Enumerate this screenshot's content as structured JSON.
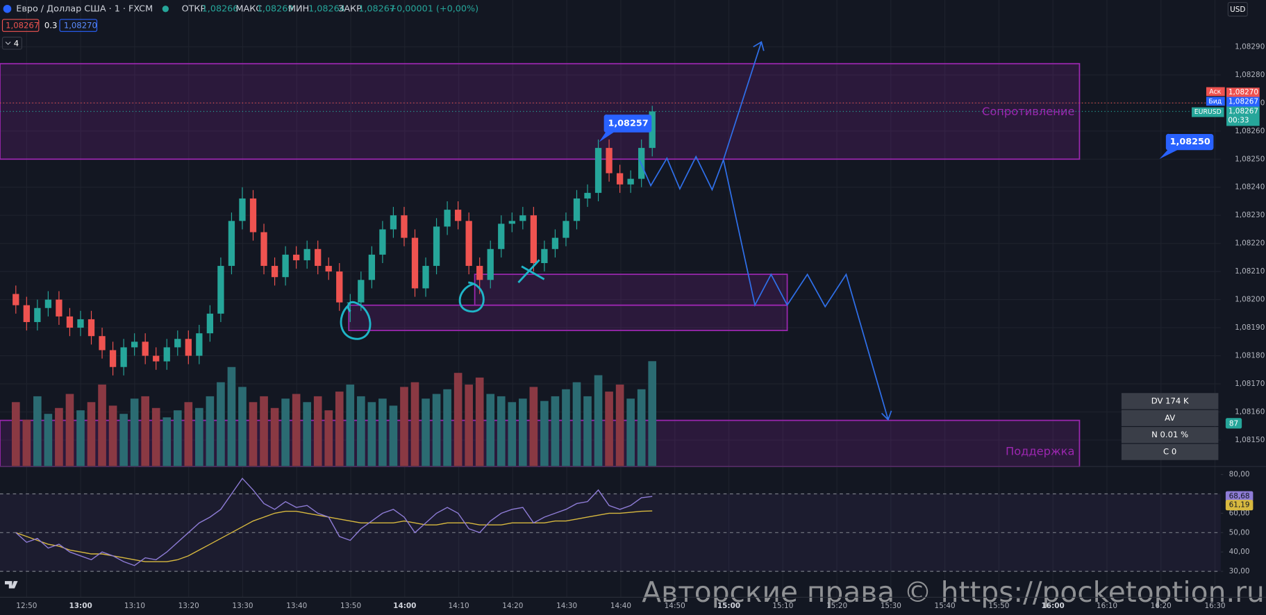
{
  "header": {
    "title": "Евро / Доллар США · 1 · FXCM",
    "open_label": "ОТКР",
    "open": "1,08266",
    "high_label": "МАКС",
    "high": "1,08269",
    "low_label": "МИН",
    "low": "1,08264",
    "close_label": "ЗАКР",
    "close": "1,08267",
    "change": "+0,00001 (+0,00%)",
    "sell": "1,08267",
    "spread": "0.3",
    "buy": "1,08270",
    "indicators": "4",
    "currency": "USD"
  },
  "badges": {
    "ask_label": "Аск",
    "bid_label": "Бид",
    "symbol": "EURUSD",
    "countdown": "00:33"
  },
  "callouts": [
    "1,08257",
    "1,08250"
  ],
  "info_box": [
    "DV 174 K",
    "AV",
    "N 0.01 %",
    "C  0",
    "87"
  ],
  "watermark": "Авторские права © https://pocketoption.ru",
  "chart_data": {
    "type": "candlestick",
    "ylim": [
      1.0814,
      1.083
    ],
    "yticks": [
      {
        "value": 1.0815,
        "label": "1,08150"
      },
      {
        "value": 1.0816,
        "label": "1,08160"
      },
      {
        "value": 1.0817,
        "label": "1,08170"
      },
      {
        "value": 1.0818,
        "label": "1,08180"
      },
      {
        "value": 1.0819,
        "label": "1,08190"
      },
      {
        "value": 1.082,
        "label": "1,08200"
      },
      {
        "value": 1.0821,
        "label": "1,08210"
      },
      {
        "value": 1.0822,
        "label": "1,08220"
      },
      {
        "value": 1.0823,
        "label": "1,08230"
      },
      {
        "value": 1.0824,
        "label": "1,08240"
      },
      {
        "value": 1.0825,
        "label": "1,08250"
      },
      {
        "value": 1.0826,
        "label": "1,08260"
      },
      {
        "value": 1.0827,
        "label": "1,08270"
      },
      {
        "value": 1.0828,
        "label": "1,08280"
      },
      {
        "value": 1.0829,
        "label": "1,08290"
      }
    ],
    "time_labels": [
      "12:50",
      "13:00",
      "13:10",
      "13:20",
      "13:30",
      "13:40",
      "13:50",
      "14:00",
      "14:10",
      "14:20",
      "14:30",
      "14:40",
      "14:50",
      "15:00",
      "15:10",
      "15:20",
      "15:30",
      "15:40",
      "15:50",
      "16:00",
      "16:10",
      "16:20",
      "16:30"
    ],
    "grid": true,
    "up_color": "#26a69a",
    "down_color": "#ef5350",
    "candles": {
      "open": [
        1.08202,
        1.08198,
        1.08192,
        1.08197,
        1.082,
        1.08194,
        1.0819,
        1.08193,
        1.08187,
        1.08182,
        1.08176,
        1.08183,
        1.08185,
        1.0818,
        1.08178,
        1.08183,
        1.08186,
        1.0818,
        1.08188,
        1.08195,
        1.08212,
        1.08228,
        1.08236,
        1.08224,
        1.08212,
        1.08208,
        1.08216,
        1.08214,
        1.08218,
        1.08212,
        1.0821,
        1.08199,
        1.08199,
        1.08207,
        1.08216,
        1.08225,
        1.0823,
        1.08222,
        1.08204,
        1.08212,
        1.08226,
        1.08232,
        1.08228,
        1.08212,
        1.08207,
        1.08218,
        1.08227,
        1.08228,
        1.0823,
        1.08213,
        1.08218,
        1.08222,
        1.08228,
        1.08236,
        1.08238,
        1.08254,
        1.08245,
        1.08241,
        1.08243,
        1.08254
      ],
      "high": [
        1.08205,
        1.08201,
        1.082,
        1.08203,
        1.08203,
        1.08197,
        1.08196,
        1.08196,
        1.0819,
        1.08185,
        1.08186,
        1.08188,
        1.08188,
        1.08183,
        1.08186,
        1.08189,
        1.08189,
        1.08191,
        1.08198,
        1.08215,
        1.08231,
        1.0824,
        1.08239,
        1.08227,
        1.08215,
        1.08219,
        1.08219,
        1.08221,
        1.08221,
        1.08215,
        1.08213,
        1.08202,
        1.0821,
        1.08219,
        1.08228,
        1.08233,
        1.08233,
        1.08225,
        1.08215,
        1.08229,
        1.08235,
        1.08235,
        1.08231,
        1.08215,
        1.08221,
        1.0823,
        1.08231,
        1.08233,
        1.08233,
        1.08221,
        1.08225,
        1.08231,
        1.08239,
        1.08241,
        1.08257,
        1.08257,
        1.08248,
        1.08246,
        1.08257,
        1.08269
      ],
      "low": [
        1.08195,
        1.08189,
        1.08189,
        1.08194,
        1.08191,
        1.08187,
        1.08187,
        1.08184,
        1.08179,
        1.08173,
        1.08173,
        1.0818,
        1.08177,
        1.08175,
        1.08175,
        1.0818,
        1.08177,
        1.08177,
        1.08185,
        1.08192,
        1.08209,
        1.08225,
        1.08221,
        1.08209,
        1.08205,
        1.08205,
        1.08211,
        1.08211,
        1.08209,
        1.08207,
        1.08196,
        1.08192,
        1.08196,
        1.08204,
        1.08213,
        1.08222,
        1.08219,
        1.08201,
        1.08201,
        1.08209,
        1.08223,
        1.08225,
        1.08209,
        1.08202,
        1.08204,
        1.08215,
        1.08224,
        1.08225,
        1.0821,
        1.0821,
        1.08215,
        1.08219,
        1.08225,
        1.08233,
        1.08235,
        1.08242,
        1.08238,
        1.08238,
        1.0824,
        1.08251
      ],
      "close": [
        1.08198,
        1.08192,
        1.08197,
        1.082,
        1.08194,
        1.0819,
        1.08193,
        1.08187,
        1.08182,
        1.08176,
        1.08183,
        1.08185,
        1.0818,
        1.08178,
        1.08183,
        1.08186,
        1.0818,
        1.08188,
        1.08195,
        1.08212,
        1.08228,
        1.08236,
        1.08224,
        1.08212,
        1.08208,
        1.08216,
        1.08214,
        1.08218,
        1.08212,
        1.0821,
        1.08199,
        1.08199,
        1.08207,
        1.08216,
        1.08225,
        1.0823,
        1.08222,
        1.08204,
        1.08212,
        1.08226,
        1.08232,
        1.08228,
        1.08212,
        1.08207,
        1.08218,
        1.08227,
        1.08228,
        1.0823,
        1.08213,
        1.08218,
        1.08222,
        1.08228,
        1.08236,
        1.08238,
        1.08254,
        1.08245,
        1.08241,
        1.08243,
        1.08254,
        1.08267
      ]
    },
    "ask": {
      "value": 1.0827,
      "label": "1,08270"
    },
    "bid": {
      "value": 1.08267,
      "label": "1,08267"
    },
    "last": {
      "value": 1.08267,
      "label": "1,08267"
    },
    "zones": [
      {
        "label": "Сопротивление",
        "top": 1.08284,
        "bottom": 1.0825
      },
      {
        "top": 1.08209,
        "bottom": 1.08198
      },
      {
        "top": 1.08198,
        "bottom": 1.08189
      },
      {
        "label": "Поддержка",
        "top": 1.08157,
        "bottom": 1.0814
      }
    ],
    "zone_color": "#9c27b0",
    "volume": {
      "ylim": [
        0,
        100
      ],
      "up_color": "#2b6b72",
      "down_color": "#8a3943",
      "values": [
        55,
        40,
        60,
        45,
        50,
        62,
        48,
        55,
        70,
        52,
        45,
        58,
        60,
        50,
        42,
        48,
        55,
        50,
        60,
        72,
        85,
        68,
        55,
        60,
        50,
        58,
        62,
        55,
        60,
        48,
        64,
        70,
        60,
        55,
        58,
        52,
        68,
        72,
        58,
        62,
        66,
        80,
        70,
        76,
        62,
        60,
        55,
        58,
        68,
        56,
        60,
        66,
        72,
        60,
        78,
        64,
        70,
        58,
        66,
        90
      ]
    },
    "rsi": {
      "ylim": [
        28.3,
        83.3
      ],
      "yticks": [
        {
          "value": 80,
          "label": "80,00"
        },
        {
          "value": 60,
          "label": "60,00"
        },
        {
          "value": 50,
          "label": "50,00"
        },
        {
          "value": 40,
          "label": "40,00"
        },
        {
          "value": 30,
          "label": "30,00"
        }
      ],
      "levels": [
        70,
        50,
        30
      ],
      "color": "#8e7cd6",
      "ma_color": "#d8b93f",
      "values": [
        50,
        45,
        47,
        42,
        44,
        40,
        38,
        36,
        40,
        38,
        35,
        33,
        37,
        36,
        40,
        45,
        50,
        55,
        58,
        62,
        70,
        78,
        72,
        65,
        62,
        66,
        63,
        64,
        60,
        58,
        48,
        46,
        52,
        56,
        60,
        62,
        58,
        50,
        55,
        60,
        63,
        60,
        52,
        50,
        56,
        60,
        62,
        63,
        55,
        58,
        60,
        62,
        65,
        66,
        72,
        64,
        62,
        64,
        68,
        68.68
      ],
      "ma": [
        50,
        48,
        46,
        44,
        43,
        41,
        40,
        39,
        39,
        38,
        37,
        36,
        35,
        35,
        35,
        36,
        38,
        41,
        44,
        47,
        50,
        53,
        56,
        58,
        60,
        61,
        61,
        60,
        59,
        58,
        57,
        56,
        55,
        55,
        55,
        55,
        56,
        55,
        54,
        54,
        55,
        55,
        55,
        54,
        54,
        54,
        55,
        55,
        55,
        55,
        56,
        56,
        57,
        58,
        59,
        60,
        60,
        60.5,
        61,
        61.19
      ],
      "value_label": "68,68",
      "ma_label": "61,19"
    }
  }
}
